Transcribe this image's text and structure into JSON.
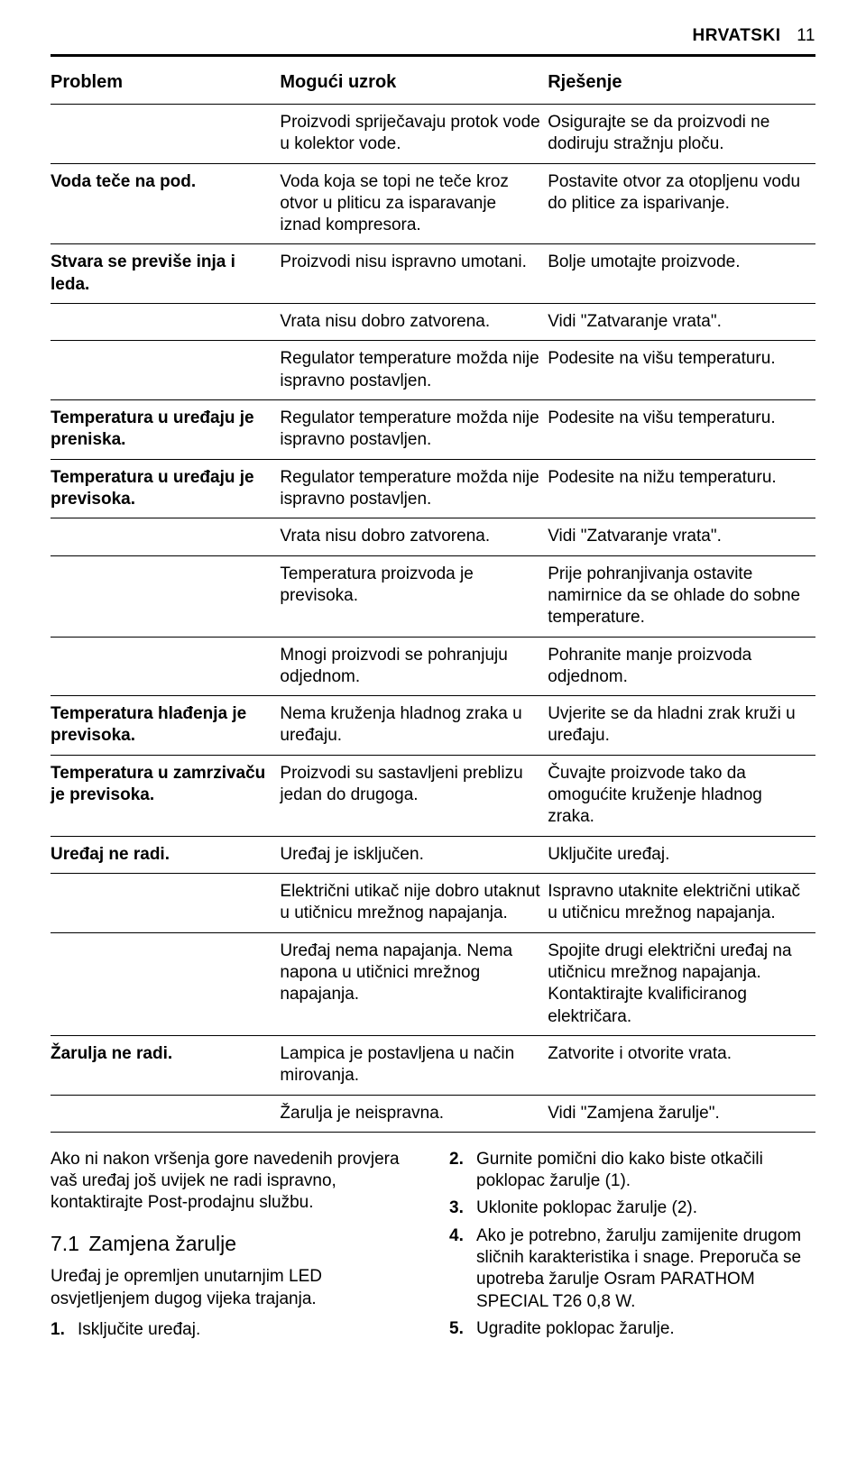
{
  "header": {
    "lang": "HRVATSKI",
    "page": "11"
  },
  "table": {
    "headers": [
      "Problem",
      "Mogući uzrok",
      "Rješenje"
    ],
    "rows": [
      {
        "problem": "",
        "cause": "Proizvodi spriječavaju protok vode u kolektor vode.",
        "solution": "Osigurajte se da proizvodi ne dodiruju stražnju ploču."
      },
      {
        "problem": "Voda teče na pod.",
        "cause": "Voda koja se topi ne teče kroz otvor u pliticu za isparavanje iznad kompresora.",
        "solution": "Postavite otvor za otopljenu vodu do plitice za isparivanje."
      },
      {
        "problem": "Stvara se previše inja i leda.",
        "cause": "Proizvodi nisu ispravno umotani.",
        "solution": "Bolje umotajte proizvode."
      },
      {
        "problem": "",
        "cause": "Vrata nisu dobro zatvorena.",
        "solution": "Vidi \"Zatvaranje vrata\"."
      },
      {
        "problem": "",
        "cause": "Regulator temperature možda nije ispravno postavljen.",
        "solution": "Podesite na višu temperaturu."
      },
      {
        "problem": "Temperatura u uređaju je preniska.",
        "cause": "Regulator temperature možda nije ispravno postavljen.",
        "solution": "Podesite na višu temperaturu."
      },
      {
        "problem": "Temperatura u uređaju je previsoka.",
        "cause": "Regulator temperature možda nije ispravno postavljen.",
        "solution": "Podesite na nižu temperaturu."
      },
      {
        "problem": "",
        "cause": "Vrata nisu dobro zatvorena.",
        "solution": "Vidi \"Zatvaranje vrata\"."
      },
      {
        "problem": "",
        "cause": "Temperatura proizvoda je previsoka.",
        "solution": "Prije pohranjivanja ostavite namirnice da se ohlade do sobne temperature."
      },
      {
        "problem": "",
        "cause": "Mnogi proizvodi se pohranjuju odjednom.",
        "solution": "Pohranite manje proizvoda odjednom."
      },
      {
        "problem": "Temperatura hlađenja je previsoka.",
        "cause": "Nema kruženja hladnog zraka u uređaju.",
        "solution": "Uvjerite se da hladni zrak kruži u uređaju."
      },
      {
        "problem": "Temperatura u zamrzivaču je previsoka.",
        "cause": "Proizvodi su sastavljeni preblizu jedan do drugoga.",
        "solution": "Čuvajte proizvode tako da omogućite kruženje hladnog zraka."
      },
      {
        "problem": "Uređaj ne radi.",
        "cause": "Uređaj je isključen.",
        "solution": "Uključite uređaj."
      },
      {
        "problem": "",
        "cause": "Električni utikač nije dobro utaknut u utičnicu mrežnog napajanja.",
        "solution": "Ispravno utaknite električni utikač u utičnicu mrežnog napajanja."
      },
      {
        "problem": "",
        "cause": "Uređaj nema napajanja. Nema napona u utičnici mrežnog napajanja.",
        "solution": "Spojite drugi električni uređaj na utičnicu mrežnog napajanja. Kontaktirajte kvalificiranog električara."
      },
      {
        "problem": "Žarulja ne radi.",
        "cause": "Lampica je postavljena u način mirovanja.",
        "solution": "Zatvorite i otvorite vrata."
      },
      {
        "problem": "",
        "cause": "Žarulja je neispravna.",
        "solution": "Vidi \"Zamjena žarulje\"."
      }
    ]
  },
  "footer": {
    "note": "Ako ni nakon vršenja gore navedenih provjera vaš uređaj još uvijek ne radi ispravno, kontaktirajte Post-prodajnu službu.",
    "section_num": "7.1",
    "section_title": "Zamjena žarulje",
    "led_note": "Uređaj je opremljen unutarnjim LED osvjetljenjem dugog vijeka trajanja.",
    "steps": [
      {
        "n": "1.",
        "t": "Isključite uređaj."
      },
      {
        "n": "2.",
        "t": "Gurnite pomični dio kako biste otkačili poklopac žarulje (1)."
      },
      {
        "n": "3.",
        "t": "Uklonite poklopac žarulje (2)."
      },
      {
        "n": "4.",
        "t": "Ako je potrebno, žarulju zamijenite drugom sličnih karakteristika i snage. Preporuča se upotreba žarulje Osram PARATHOM SPECIAL T26 0,8 W."
      },
      {
        "n": "5.",
        "t": "Ugradite poklopac žarulje."
      }
    ]
  }
}
